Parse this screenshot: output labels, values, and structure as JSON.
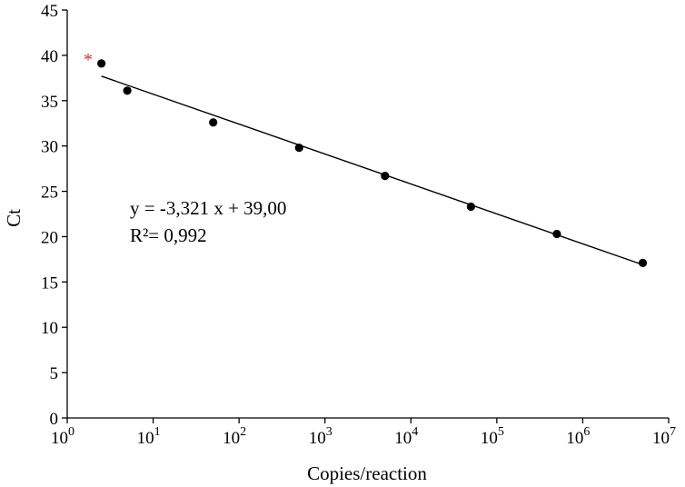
{
  "chart_data": {
    "type": "scatter",
    "xlabel": "Copies/reaction",
    "ylabel": "Ct",
    "x_scale": "log10",
    "xlim": [
      1,
      10000000
    ],
    "ylim": [
      0,
      45
    ],
    "x_tick_base": "10",
    "x_tick_exponents": [
      "0",
      "1",
      "2",
      "3",
      "4",
      "5",
      "6",
      "7"
    ],
    "y_ticks": [
      "0",
      "5",
      "10",
      "15",
      "20",
      "25",
      "30",
      "35",
      "40",
      "45"
    ],
    "points": [
      {
        "x": 2.5,
        "y": 39.1
      },
      {
        "x": 5,
        "y": 36.1
      },
      {
        "x": 50,
        "y": 32.6
      },
      {
        "x": 500,
        "y": 29.8
      },
      {
        "x": 5000,
        "y": 26.7
      },
      {
        "x": 50000,
        "y": 23.3
      },
      {
        "x": 500000,
        "y": 20.3
      },
      {
        "x": 5000000,
        "y": 17.1
      }
    ],
    "fit_line": {
      "x_start": 2.5,
      "x_end": 5000000,
      "y_start": 37.7,
      "y_end": 16.9
    },
    "equation": "y = -3,321 x + 39,00",
    "r_squared": "R²= 0,992",
    "marker_symbol": "*",
    "marker_color": "#c0392b",
    "point_color": "#000000",
    "grid": false
  }
}
